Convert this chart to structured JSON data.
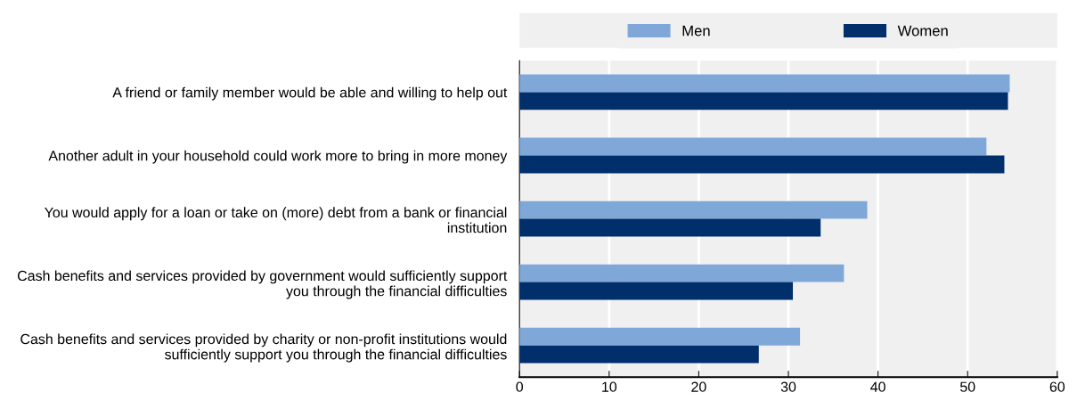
{
  "chart_data": {
    "type": "bar",
    "orientation": "horizontal",
    "categories": [
      "A friend or family member would be able and willing to help out",
      "Another adult in your household could work more to bring in more money",
      "You would apply for a loan or take on (more) debt from a bank or financial institution",
      "Cash benefits and services provided by government would sufficiently support you through the financial difficulties",
      "Cash benefits and services provided by charity or non-profit institutions would sufficiently support you through the financial difficulties"
    ],
    "series": [
      {
        "name": "Men",
        "color": "#7fa8d9",
        "values": [
          54.7,
          52.1,
          38.8,
          36.2,
          31.3
        ]
      },
      {
        "name": "Women",
        "color": "#002f6c",
        "values": [
          54.5,
          54.1,
          33.6,
          30.5,
          26.7
        ]
      }
    ],
    "xlim": [
      0,
      60
    ],
    "xticks": [
      0,
      10,
      20,
      30,
      40,
      50,
      60
    ],
    "grid": "x",
    "legend": "top"
  }
}
